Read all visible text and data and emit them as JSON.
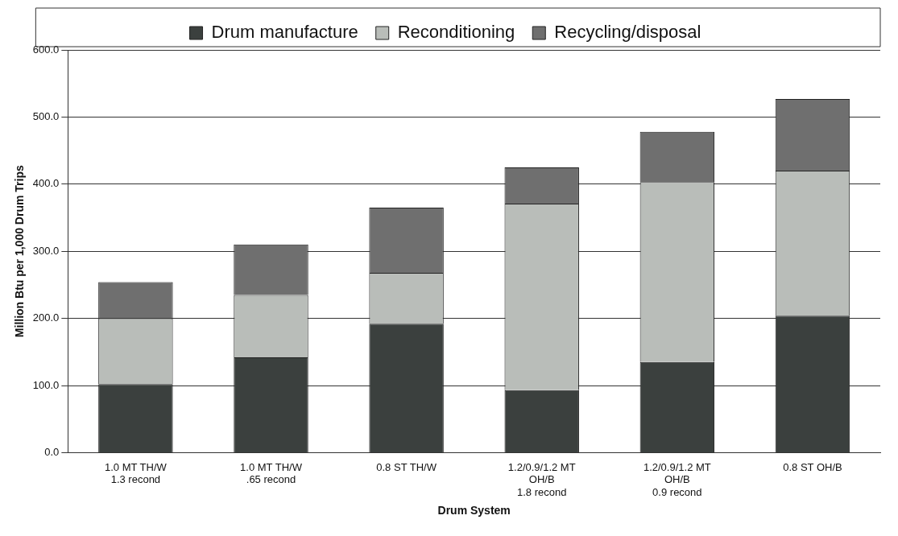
{
  "chart_data": {
    "type": "bar",
    "stacked": true,
    "xlabel": "Drum System",
    "ylabel": "Million Btu per 1,000 Drum Trips",
    "categories": [
      "1.0 MT TH/W\n1.3 recond",
      "1.0 MT TH/W\n.65 recond",
      "0.8 ST TH/W",
      "1.2/0.9/1.2 MT\nOH/B\n1.8 recond",
      "1.2/0.9/1.2 MT\nOH/B\n0.9 recond",
      "0.8 ST OH/B"
    ],
    "series": [
      {
        "name": "Drum manufacture",
        "color": "#3b403e",
        "values": [
          102,
          142,
          192,
          93,
          135,
          204
        ]
      },
      {
        "name": "Reconditioning",
        "color": "#b9bdb9",
        "values": [
          98,
          93,
          76,
          278,
          268,
          216
        ]
      },
      {
        "name": "Recycling/disposal",
        "color": "#6f6f6f",
        "values": [
          54,
          75,
          97,
          54,
          75,
          107
        ]
      }
    ],
    "ylim": [
      0,
      600
    ],
    "yticks": [
      {
        "value": 0,
        "label": "0.0"
      },
      {
        "value": 100,
        "label": "100.0"
      },
      {
        "value": 200,
        "label": "200.0"
      },
      {
        "value": 300,
        "label": "300.0"
      },
      {
        "value": 400,
        "label": "400.0"
      },
      {
        "value": 500,
        "label": "500.0"
      },
      {
        "value": 600,
        "label": "600.0"
      }
    ],
    "grid": "y",
    "legend": "top"
  }
}
